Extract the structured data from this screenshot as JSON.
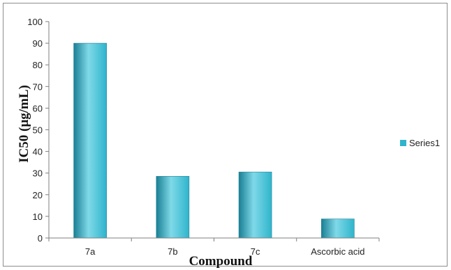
{
  "chart_data": {
    "type": "bar",
    "categories": [
      "7a",
      "7b",
      "7c",
      "Ascorbic acid"
    ],
    "series": [
      {
        "name": "Series1",
        "values": [
          90,
          28.5,
          30.5,
          8.8
        ]
      }
    ],
    "xlabel": "Compound",
    "ylabel": "IC50 (µg/mL)",
    "ylim": [
      0,
      100
    ],
    "yticks": [
      0,
      10,
      20,
      30,
      40,
      50,
      60,
      70,
      80,
      90,
      100
    ],
    "grid": false,
    "legend_position": "right",
    "colors": {
      "bar": "#2fb4cc",
      "bar_light": "#7fd9e8",
      "bar_dark": "#1a7f94",
      "axis": "#7f7f7f"
    }
  }
}
